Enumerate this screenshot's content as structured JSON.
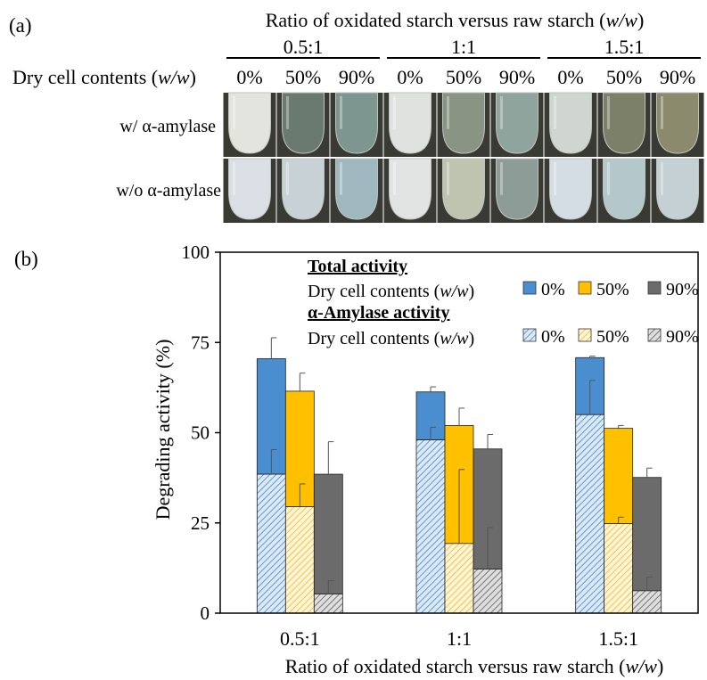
{
  "panel_a": {
    "label": "(a)",
    "header_prefix": "Ratio of oxidated starch versus raw starch (",
    "header_unit": "w/w",
    "header_suffix": ")",
    "ratios": [
      "0.5:1",
      "1:1",
      "1.5:1"
    ],
    "row_label_prefix": "Dry cell contents (",
    "row_label_unit": "w/w",
    "row_label_suffix": ")",
    "contents": [
      "0%",
      "50%",
      "90%"
    ],
    "rows": [
      {
        "label": "w/ α-amylase",
        "tube_colors": [
          "#e4e4de",
          "#6a7a70",
          "#7e9690",
          "#e0e2e0",
          "#8a9484",
          "#8fa49c",
          "#cfd6d2",
          "#7c8068",
          "#8c8a6c"
        ]
      },
      {
        "label": "w/o α-amylase",
        "tube_colors": [
          "#d9dfe4",
          "#c8d2d6",
          "#9fb8c0",
          "#e2e4e4",
          "#bfc4b0",
          "#8e9c98",
          "#d4dde4",
          "#b4c8cc",
          "#c4d0d4"
        ]
      }
    ]
  },
  "panel_b": {
    "label": "(b)"
  },
  "chart_data": {
    "type": "bar",
    "categories": [
      "0.5:1",
      "1:1",
      "1.5:1"
    ],
    "xlabel_prefix": "Ratio of oxidated starch versus raw starch (",
    "xlabel_unit": "w/w",
    "xlabel_suffix": ")",
    "ylabel": "Degrading activity (%)",
    "ylim": [
      0,
      100
    ],
    "yticks": [
      0,
      25,
      50,
      75,
      100
    ],
    "legend": {
      "total_title": "Total activity",
      "amylase_title": "α-Amylase activity",
      "row_prefix": "Dry cell contents (",
      "row_unit": "w/w",
      "row_suffix": ")",
      "placement": "top"
    },
    "series": [
      {
        "name": "0%",
        "total": [
          70.5,
          61.3,
          70.8
        ],
        "total_err": [
          5.8,
          1.4,
          0.4
        ],
        "amylase": [
          38.5,
          48.0,
          55.0
        ],
        "amylase_err": [
          6.8,
          3.5,
          9.5
        ],
        "color": "#4a8ed0",
        "hatch_color": "#5b9bd5",
        "hatch_bg": "#dce9f5"
      },
      {
        "name": "50%",
        "total": [
          61.5,
          52.0,
          51.2
        ],
        "total_err": [
          5.0,
          4.8,
          0.8
        ],
        "amylase": [
          29.5,
          19.3,
          24.8
        ],
        "amylase_err": [
          6.3,
          20.5,
          1.8
        ],
        "color": "#ffc000",
        "hatch_color": "#f5c342",
        "hatch_bg": "#fff5d9"
      },
      {
        "name": "90%",
        "total": [
          38.5,
          45.5,
          37.6
        ],
        "total_err": [
          9.0,
          4.0,
          2.6
        ],
        "amylase": [
          5.3,
          12.2,
          6.2
        ],
        "amylase_err": [
          3.7,
          11.5,
          3.8
        ],
        "color": "#6b6b6b",
        "hatch_color": "#777777",
        "hatch_bg": "#dedede"
      }
    ]
  }
}
